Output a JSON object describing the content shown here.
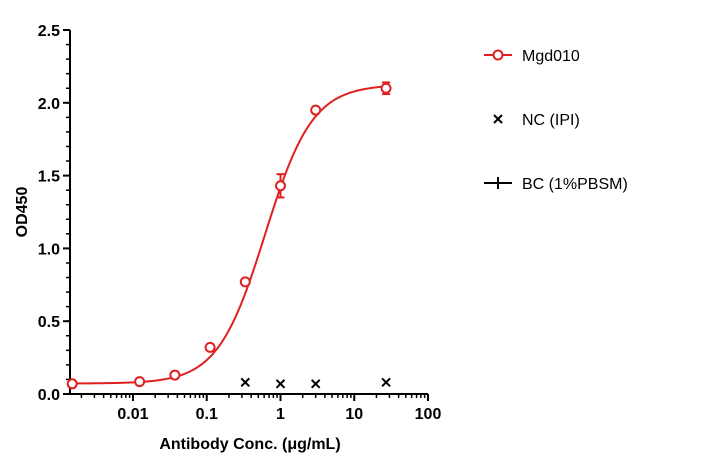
{
  "chart_data": {
    "type": "scatter",
    "xlabel": "Antibody Conc. (μg/mL)",
    "ylabel": "OD450",
    "xscale": "log",
    "xlim": [
      0.0014,
      100
    ],
    "ylim": [
      0,
      2.5
    ],
    "x_ticks": [
      0.01,
      0.1,
      1,
      10,
      100
    ],
    "x_tick_labels": [
      "0.01",
      "0.1",
      "1",
      "10",
      "100"
    ],
    "y_ticks": [
      0,
      0.5,
      1.0,
      1.5,
      2.0,
      2.5
    ],
    "y_tick_labels": [
      "0.0",
      "0.5",
      "1.0",
      "1.5",
      "2.0",
      "2.5"
    ],
    "legend_position": "right",
    "series": [
      {
        "name": "Mgd010",
        "marker": "open-circle",
        "color": "#e02020",
        "fit_curve": true,
        "x": [
          0.0015,
          0.0123,
          0.037,
          0.111,
          0.333,
          1.0,
          3.0,
          27.0
        ],
        "y": [
          0.07,
          0.085,
          0.13,
          0.32,
          0.77,
          1.43,
          1.95,
          2.1
        ],
        "error": [
          0,
          0,
          0,
          0,
          0,
          0.08,
          0,
          0.04
        ]
      },
      {
        "name": "NC (IPI)",
        "marker": "x",
        "color": "#000000",
        "x": [
          0.333,
          1.0,
          3.0,
          27.0
        ],
        "y": [
          0.08,
          0.07,
          0.07,
          0.08
        ]
      },
      {
        "name": "BC (1%PBSM)",
        "marker": "plus",
        "color": "#000000",
        "x": [],
        "y": []
      }
    ]
  }
}
